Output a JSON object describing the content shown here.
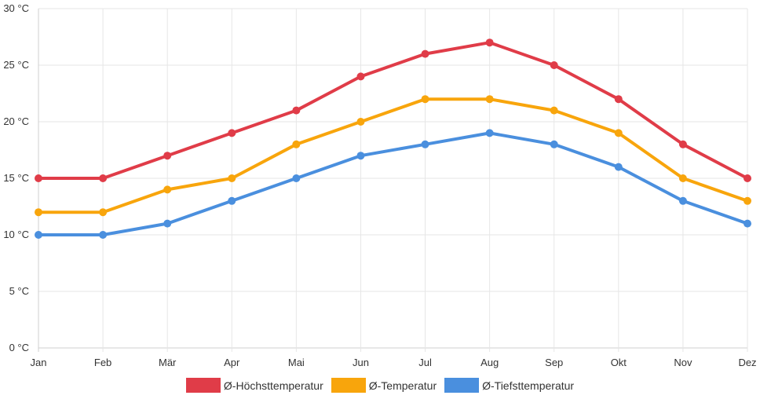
{
  "chart_data": {
    "type": "line",
    "categories": [
      "Jan",
      "Feb",
      "Mär",
      "Apr",
      "Mai",
      "Jun",
      "Jul",
      "Aug",
      "Sep",
      "Okt",
      "Nov",
      "Dez"
    ],
    "y_ticks": [
      "0 °C",
      "5 °C",
      "10 °C",
      "15 °C",
      "20 °C",
      "25 °C",
      "30 °C"
    ],
    "ylim": [
      0,
      30
    ],
    "grid": true,
    "legend_position": "bottom",
    "series": [
      {
        "name": "Ø-Höchsttemperatur",
        "color": "#e03c48",
        "values": [
          15,
          15,
          17,
          19,
          21,
          24,
          26,
          27,
          25,
          22,
          18,
          15
        ]
      },
      {
        "name": "Ø-Temperatur",
        "color": "#f8a50c",
        "values": [
          12,
          12,
          14,
          15,
          18,
          20,
          22,
          22,
          21,
          19,
          15,
          13
        ]
      },
      {
        "name": "Ø-Tiefsttemperatur",
        "color": "#4a8fde",
        "values": [
          10,
          10,
          11,
          13,
          15,
          17,
          18,
          19,
          18,
          16,
          13,
          11
        ]
      }
    ]
  }
}
